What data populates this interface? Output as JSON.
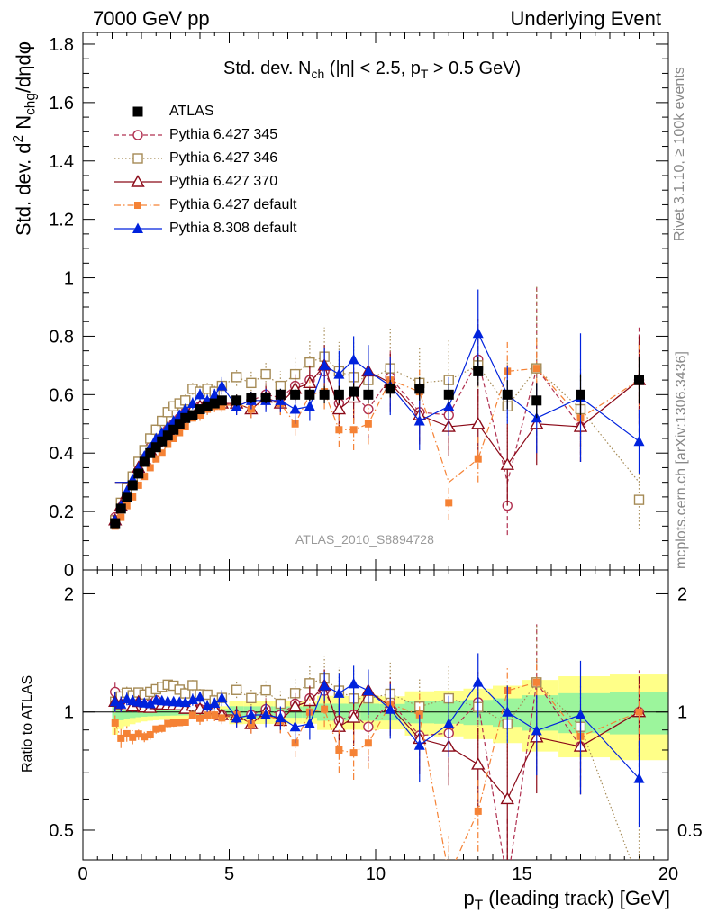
{
  "header": {
    "left": "7000 GeV pp",
    "right": "Underlying Event"
  },
  "side_labels": {
    "rivet": "Rivet 3.1.10, ≥ 100k events",
    "mcplots": "mcplots.cern.ch [arXiv:1306.3436]"
  },
  "analysis_id": "ATLAS_2010_S8894728",
  "colors": {
    "atlas": "#000000",
    "p345": "#b03050",
    "p346": "#a58a55",
    "p370": "#8b0a18",
    "p6def": "#f58235",
    "p8def": "#0022dd",
    "band_inner": "#9cf59c",
    "band_outer": "#ffff88"
  },
  "chart_data": [
    {
      "type": "scatter",
      "title_main": "Std. dev. N",
      "title_sub": "ch",
      "title_rest": " (|η| < 2.5, p",
      "title_sub2": "T",
      "title_end": " > 0.5 GeV)",
      "ylabel": "Std. dev. d² N_chg/dηdφ",
      "ylabel_parts": [
        "Std. dev. d",
        "2",
        " N",
        "chg",
        "/dηdφ"
      ],
      "xlim": [
        0,
        20
      ],
      "ylim": [
        0,
        1.84
      ],
      "yticks": [
        "0",
        "0.2",
        "0.4",
        "0.6",
        "0.8",
        "1",
        "1.2",
        "1.4",
        "1.6",
        "1.8"
      ],
      "legend_position": "top-left",
      "x": [
        1.1,
        1.3,
        1.5,
        1.7,
        1.9,
        2.1,
        2.3,
        2.5,
        2.7,
        2.9,
        3.1,
        3.3,
        3.5,
        3.75,
        4.0,
        4.25,
        4.5,
        4.75,
        5.25,
        5.75,
        6.25,
        6.75,
        7.25,
        7.75,
        8.25,
        8.75,
        9.25,
        9.75,
        10.5,
        11.5,
        12.5,
        13.5,
        14.5,
        15.5,
        17.0,
        19.0
      ],
      "series": [
        {
          "name": "ATLAS",
          "key": "atlas",
          "marker": "square-filled",
          "line": "none",
          "values": [
            0.16,
            0.21,
            0.25,
            0.29,
            0.33,
            0.37,
            0.4,
            0.42,
            0.44,
            0.46,
            0.48,
            0.5,
            0.52,
            0.53,
            0.55,
            0.56,
            0.57,
            0.58,
            0.58,
            0.59,
            0.59,
            0.6,
            0.6,
            0.6,
            0.6,
            0.6,
            0.61,
            0.6,
            0.62,
            0.62,
            0.6,
            0.68,
            0.6,
            0.58,
            0.6,
            0.65
          ],
          "err": [
            0.01,
            0.01,
            0.01,
            0.01,
            0.01,
            0.01,
            0.01,
            0.01,
            0.01,
            0.01,
            0.01,
            0.01,
            0.01,
            0.01,
            0.01,
            0.01,
            0.01,
            0.01,
            0.02,
            0.02,
            0.02,
            0.02,
            0.02,
            0.02,
            0.03,
            0.03,
            0.03,
            0.03,
            0.03,
            0.04,
            0.04,
            0.05,
            0.05,
            0.06,
            0.07,
            0.08
          ]
        },
        {
          "name": "Pythia 6.427 345",
          "key": "p345",
          "marker": "circle-open",
          "line": "dashed",
          "values": [
            0.18,
            0.22,
            0.27,
            0.3,
            0.34,
            0.38,
            0.42,
            0.45,
            0.46,
            0.48,
            0.5,
            0.52,
            0.54,
            0.55,
            0.56,
            0.57,
            0.58,
            0.57,
            0.56,
            0.58,
            0.6,
            0.59,
            0.63,
            0.65,
            0.68,
            0.57,
            0.6,
            0.55,
            0.66,
            0.54,
            0.53,
            0.72,
            0.22,
            0.69,
            0.49,
            0.65
          ],
          "err": [
            0.01,
            0.01,
            0.01,
            0.01,
            0.01,
            0.01,
            0.01,
            0.01,
            0.01,
            0.01,
            0.01,
            0.01,
            0.01,
            0.01,
            0.02,
            0.02,
            0.02,
            0.02,
            0.03,
            0.03,
            0.04,
            0.04,
            0.05,
            0.06,
            0.07,
            0.08,
            0.09,
            0.1,
            0.1,
            0.1,
            0.12,
            0.14,
            0.1,
            0.28,
            0.12,
            0.18
          ]
        },
        {
          "name": "Pythia 6.427 346",
          "key": "p346",
          "marker": "square-open",
          "line": "dotted",
          "values": [
            0.17,
            0.23,
            0.28,
            0.32,
            0.37,
            0.41,
            0.45,
            0.48,
            0.51,
            0.54,
            0.56,
            0.57,
            0.58,
            0.62,
            0.61,
            0.62,
            0.61,
            0.63,
            0.66,
            0.64,
            0.67,
            0.63,
            0.67,
            0.71,
            0.73,
            0.68,
            0.66,
            0.65,
            0.69,
            0.64,
            0.65,
            0.7,
            0.56,
            0.69,
            0.55,
            0.24
          ],
          "err": [
            0.01,
            0.01,
            0.01,
            0.01,
            0.01,
            0.01,
            0.01,
            0.01,
            0.01,
            0.01,
            0.01,
            0.01,
            0.02,
            0.02,
            0.02,
            0.02,
            0.02,
            0.03,
            0.03,
            0.04,
            0.04,
            0.05,
            0.06,
            0.08,
            0.1,
            0.1,
            0.12,
            0.1,
            0.14,
            0.12,
            0.14,
            0.15,
            0.15,
            0.28,
            0.15,
            0.1
          ]
        },
        {
          "name": "Pythia 6.427 370",
          "key": "p370",
          "marker": "triangle-open",
          "line": "solid",
          "values": [
            0.17,
            0.22,
            0.26,
            0.3,
            0.35,
            0.38,
            0.41,
            0.44,
            0.46,
            0.48,
            0.5,
            0.52,
            0.53,
            0.55,
            0.56,
            0.57,
            0.58,
            0.57,
            0.57,
            0.55,
            0.59,
            0.57,
            0.62,
            0.64,
            0.7,
            0.55,
            0.59,
            0.68,
            0.64,
            0.53,
            0.49,
            0.5,
            0.36,
            0.5,
            0.49,
            0.65
          ],
          "err": [
            0.01,
            0.01,
            0.01,
            0.01,
            0.01,
            0.01,
            0.01,
            0.01,
            0.01,
            0.01,
            0.01,
            0.01,
            0.01,
            0.02,
            0.02,
            0.02,
            0.02,
            0.02,
            0.03,
            0.03,
            0.04,
            0.04,
            0.05,
            0.06,
            0.07,
            0.08,
            0.09,
            0.08,
            0.1,
            0.1,
            0.1,
            0.12,
            0.14,
            0.14,
            0.12,
            0.15
          ]
        },
        {
          "name": "Pythia 6.427 default",
          "key": "p6def",
          "marker": "square-filled-small",
          "line": "dashdot",
          "values": [
            0.15,
            0.18,
            0.22,
            0.25,
            0.29,
            0.32,
            0.35,
            0.38,
            0.4,
            0.43,
            0.45,
            0.47,
            0.49,
            0.52,
            0.53,
            0.55,
            0.56,
            0.56,
            0.57,
            0.55,
            0.58,
            0.57,
            0.5,
            0.6,
            0.61,
            0.48,
            0.48,
            0.5,
            0.65,
            0.61,
            0.23,
            0.38,
            0.68,
            0.69,
            0.52,
            0.65
          ],
          "err": [
            0.01,
            0.01,
            0.01,
            0.01,
            0.01,
            0.01,
            0.01,
            0.01,
            0.01,
            0.01,
            0.01,
            0.01,
            0.01,
            0.01,
            0.02,
            0.02,
            0.02,
            0.02,
            0.02,
            0.03,
            0.03,
            0.04,
            0.04,
            0.05,
            0.06,
            0.06,
            0.07,
            0.07,
            0.08,
            0.08,
            0.06,
            0.08,
            0.1,
            0.1,
            0.1,
            0.12
          ]
        },
        {
          "name": "Pythia 8.308 default",
          "key": "p8def",
          "marker": "triangle-filled",
          "line": "solid",
          "values": [
            0.17,
            0.22,
            0.27,
            0.31,
            0.35,
            0.39,
            0.42,
            0.45,
            0.47,
            0.49,
            0.51,
            0.53,
            0.55,
            0.57,
            0.6,
            0.58,
            0.6,
            0.63,
            0.56,
            0.58,
            0.58,
            0.58,
            0.55,
            0.56,
            0.7,
            0.67,
            0.72,
            0.68,
            0.63,
            0.51,
            0.56,
            0.81,
            0.6,
            0.52,
            0.59,
            0.44
          ],
          "err": [
            0.01,
            0.01,
            0.01,
            0.01,
            0.01,
            0.01,
            0.01,
            0.01,
            0.01,
            0.01,
            0.01,
            0.01,
            0.01,
            0.02,
            0.02,
            0.02,
            0.02,
            0.03,
            0.03,
            0.03,
            0.04,
            0.04,
            0.05,
            0.05,
            0.06,
            0.08,
            0.08,
            0.09,
            0.1,
            0.1,
            0.1,
            0.15,
            0.1,
            0.12,
            0.22,
            0.11
          ]
        }
      ]
    },
    {
      "type": "scatter",
      "title": "ratio",
      "ylabel": "Ratio to ATLAS",
      "xlabel_main": "p",
      "xlabel_sub": "T",
      "xlabel_rest": " (leading track) [GeV]",
      "xticks": [
        "0",
        "5",
        "10",
        "15",
        "20"
      ],
      "yticks": [
        "0.5",
        "1",
        "2"
      ],
      "ylim": [
        0.42,
        2.3
      ],
      "log_y": true
    }
  ]
}
